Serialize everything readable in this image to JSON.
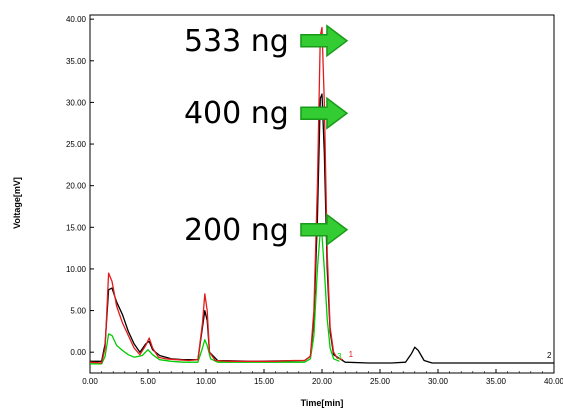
{
  "chart_data": {
    "type": "line",
    "xlabel": "Time[min]",
    "ylabel": "Voltage[mV]",
    "xlim": [
      0,
      40
    ],
    "ylim": [
      -2.5,
      40.5
    ],
    "x_ticks": [
      "0.00",
      "5.00",
      "10.00",
      "15.00",
      "20.00",
      "25.00",
      "30.00",
      "35.00",
      "40.00"
    ],
    "y_ticks": [
      "0.00",
      "5.00",
      "10.00",
      "15.00",
      "20.00",
      "25.00",
      "30.00",
      "35.00",
      "40.00"
    ],
    "grid": false,
    "series": [
      {
        "name": "1",
        "color": "#e31a1c",
        "points": [
          [
            0,
            -1.2
          ],
          [
            1.0,
            -1.3
          ],
          [
            1.3,
            0.5
          ],
          [
            1.6,
            9.5
          ],
          [
            1.9,
            8.5
          ],
          [
            2.3,
            5.5
          ],
          [
            2.8,
            3.5
          ],
          [
            3.3,
            2.0
          ],
          [
            3.8,
            0.5
          ],
          [
            4.3,
            -0.3
          ],
          [
            4.8,
            0.8
          ],
          [
            5.1,
            1.7
          ],
          [
            5.4,
            0.5
          ],
          [
            5.9,
            -0.6
          ],
          [
            6.5,
            -0.8
          ],
          [
            7.5,
            -0.9
          ],
          [
            8.5,
            -1.0
          ],
          [
            9.3,
            -0.9
          ],
          [
            9.7,
            3.5
          ],
          [
            9.9,
            7.0
          ],
          [
            10.1,
            5.0
          ],
          [
            10.3,
            0.0
          ],
          [
            10.8,
            -1.0
          ],
          [
            12.0,
            -1.1
          ],
          [
            14.0,
            -1.1
          ],
          [
            16.0,
            -1.1
          ],
          [
            17.5,
            -1.0
          ],
          [
            18.5,
            -1.0
          ],
          [
            19.0,
            -0.5
          ],
          [
            19.3,
            5.0
          ],
          [
            19.6,
            20.0
          ],
          [
            19.85,
            38.0
          ],
          [
            20.0,
            39.0
          ],
          [
            20.2,
            30.0
          ],
          [
            20.45,
            12.0
          ],
          [
            20.7,
            3.0
          ],
          [
            21.0,
            0.0
          ],
          [
            21.3,
            -0.7
          ],
          [
            21.8,
            -0.9
          ]
        ]
      },
      {
        "name": "",
        "color": "#000000",
        "points": [
          [
            0,
            -1.1
          ],
          [
            1.0,
            -1.1
          ],
          [
            1.3,
            1.0
          ],
          [
            1.6,
            7.5
          ],
          [
            1.9,
            7.7
          ],
          [
            2.3,
            6.0
          ],
          [
            2.8,
            4.5
          ],
          [
            3.3,
            2.5
          ],
          [
            3.8,
            1.0
          ],
          [
            4.3,
            0.0
          ],
          [
            4.8,
            1.0
          ],
          [
            5.1,
            1.3
          ],
          [
            5.4,
            0.3
          ],
          [
            6.0,
            -0.4
          ],
          [
            7.0,
            -0.8
          ],
          [
            8.0,
            -0.9
          ],
          [
            9.3,
            -0.9
          ],
          [
            9.7,
            3.0
          ],
          [
            9.9,
            5.0
          ],
          [
            10.1,
            3.8
          ],
          [
            10.3,
            0.0
          ],
          [
            11.0,
            -1.0
          ],
          [
            14.0,
            -1.1
          ],
          [
            18.5,
            -1.0
          ],
          [
            19.0,
            -0.5
          ],
          [
            19.3,
            4.0
          ],
          [
            19.6,
            16.0
          ],
          [
            19.85,
            30.5
          ],
          [
            20.0,
            31.0
          ],
          [
            20.2,
            24.0
          ],
          [
            20.45,
            10.0
          ],
          [
            20.7,
            2.5
          ],
          [
            21.0,
            -0.3
          ],
          [
            22.0,
            -1.2
          ],
          [
            24.0,
            -1.3
          ],
          [
            26.0,
            -1.3
          ],
          [
            27.2,
            -1.2
          ],
          [
            27.7,
            -0.2
          ],
          [
            28.0,
            0.6
          ],
          [
            28.3,
            0.2
          ],
          [
            28.8,
            -1.0
          ],
          [
            29.5,
            -1.3
          ],
          [
            32.0,
            -1.3
          ],
          [
            35.0,
            -1.3
          ],
          [
            38.0,
            -1.3
          ],
          [
            40.0,
            -1.3
          ]
        ]
      },
      {
        "name": "3",
        "color": "#00cc00",
        "points": [
          [
            0,
            -1.4
          ],
          [
            1.0,
            -1.4
          ],
          [
            1.3,
            -0.5
          ],
          [
            1.6,
            2.2
          ],
          [
            1.9,
            2.0
          ],
          [
            2.3,
            0.8
          ],
          [
            2.8,
            0.2
          ],
          [
            3.3,
            -0.3
          ],
          [
            3.8,
            -0.6
          ],
          [
            4.5,
            -0.4
          ],
          [
            5.0,
            0.3
          ],
          [
            5.4,
            -0.3
          ],
          [
            6.0,
            -0.9
          ],
          [
            7.0,
            -1.1
          ],
          [
            8.0,
            -1.2
          ],
          [
            9.3,
            -1.2
          ],
          [
            9.7,
            0.5
          ],
          [
            9.9,
            1.5
          ],
          [
            10.1,
            0.8
          ],
          [
            10.4,
            -0.8
          ],
          [
            11.0,
            -1.2
          ],
          [
            14.0,
            -1.2
          ],
          [
            18.5,
            -1.2
          ],
          [
            19.0,
            -0.8
          ],
          [
            19.3,
            2.0
          ],
          [
            19.6,
            10.0
          ],
          [
            19.85,
            14.5
          ],
          [
            20.0,
            14.0
          ],
          [
            20.2,
            10.0
          ],
          [
            20.45,
            4.0
          ],
          [
            20.7,
            0.5
          ],
          [
            21.0,
            -0.8
          ],
          [
            21.5,
            -1.1
          ]
        ]
      }
    ],
    "trace_labels": [
      {
        "text": "1",
        "color": "#e31a1c",
        "x": 22.3,
        "y": -0.6
      },
      {
        "text": "3",
        "color": "#00cc00",
        "x": 21.3,
        "y": -0.8
      },
      {
        "text": "2",
        "color": "#000000",
        "x": 39.4,
        "y": -0.7
      }
    ],
    "annotations": [
      {
        "text": "533 ng",
        "x": 8.1,
        "y": 36.2
      },
      {
        "text": "400 ng",
        "x": 8.1,
        "y": 27.5
      },
      {
        "text": "200 ng",
        "x": 8.1,
        "y": 13.5
      }
    ],
    "arrow_color": "#33cc33",
    "arrow_stroke": "#1a9a1a"
  }
}
